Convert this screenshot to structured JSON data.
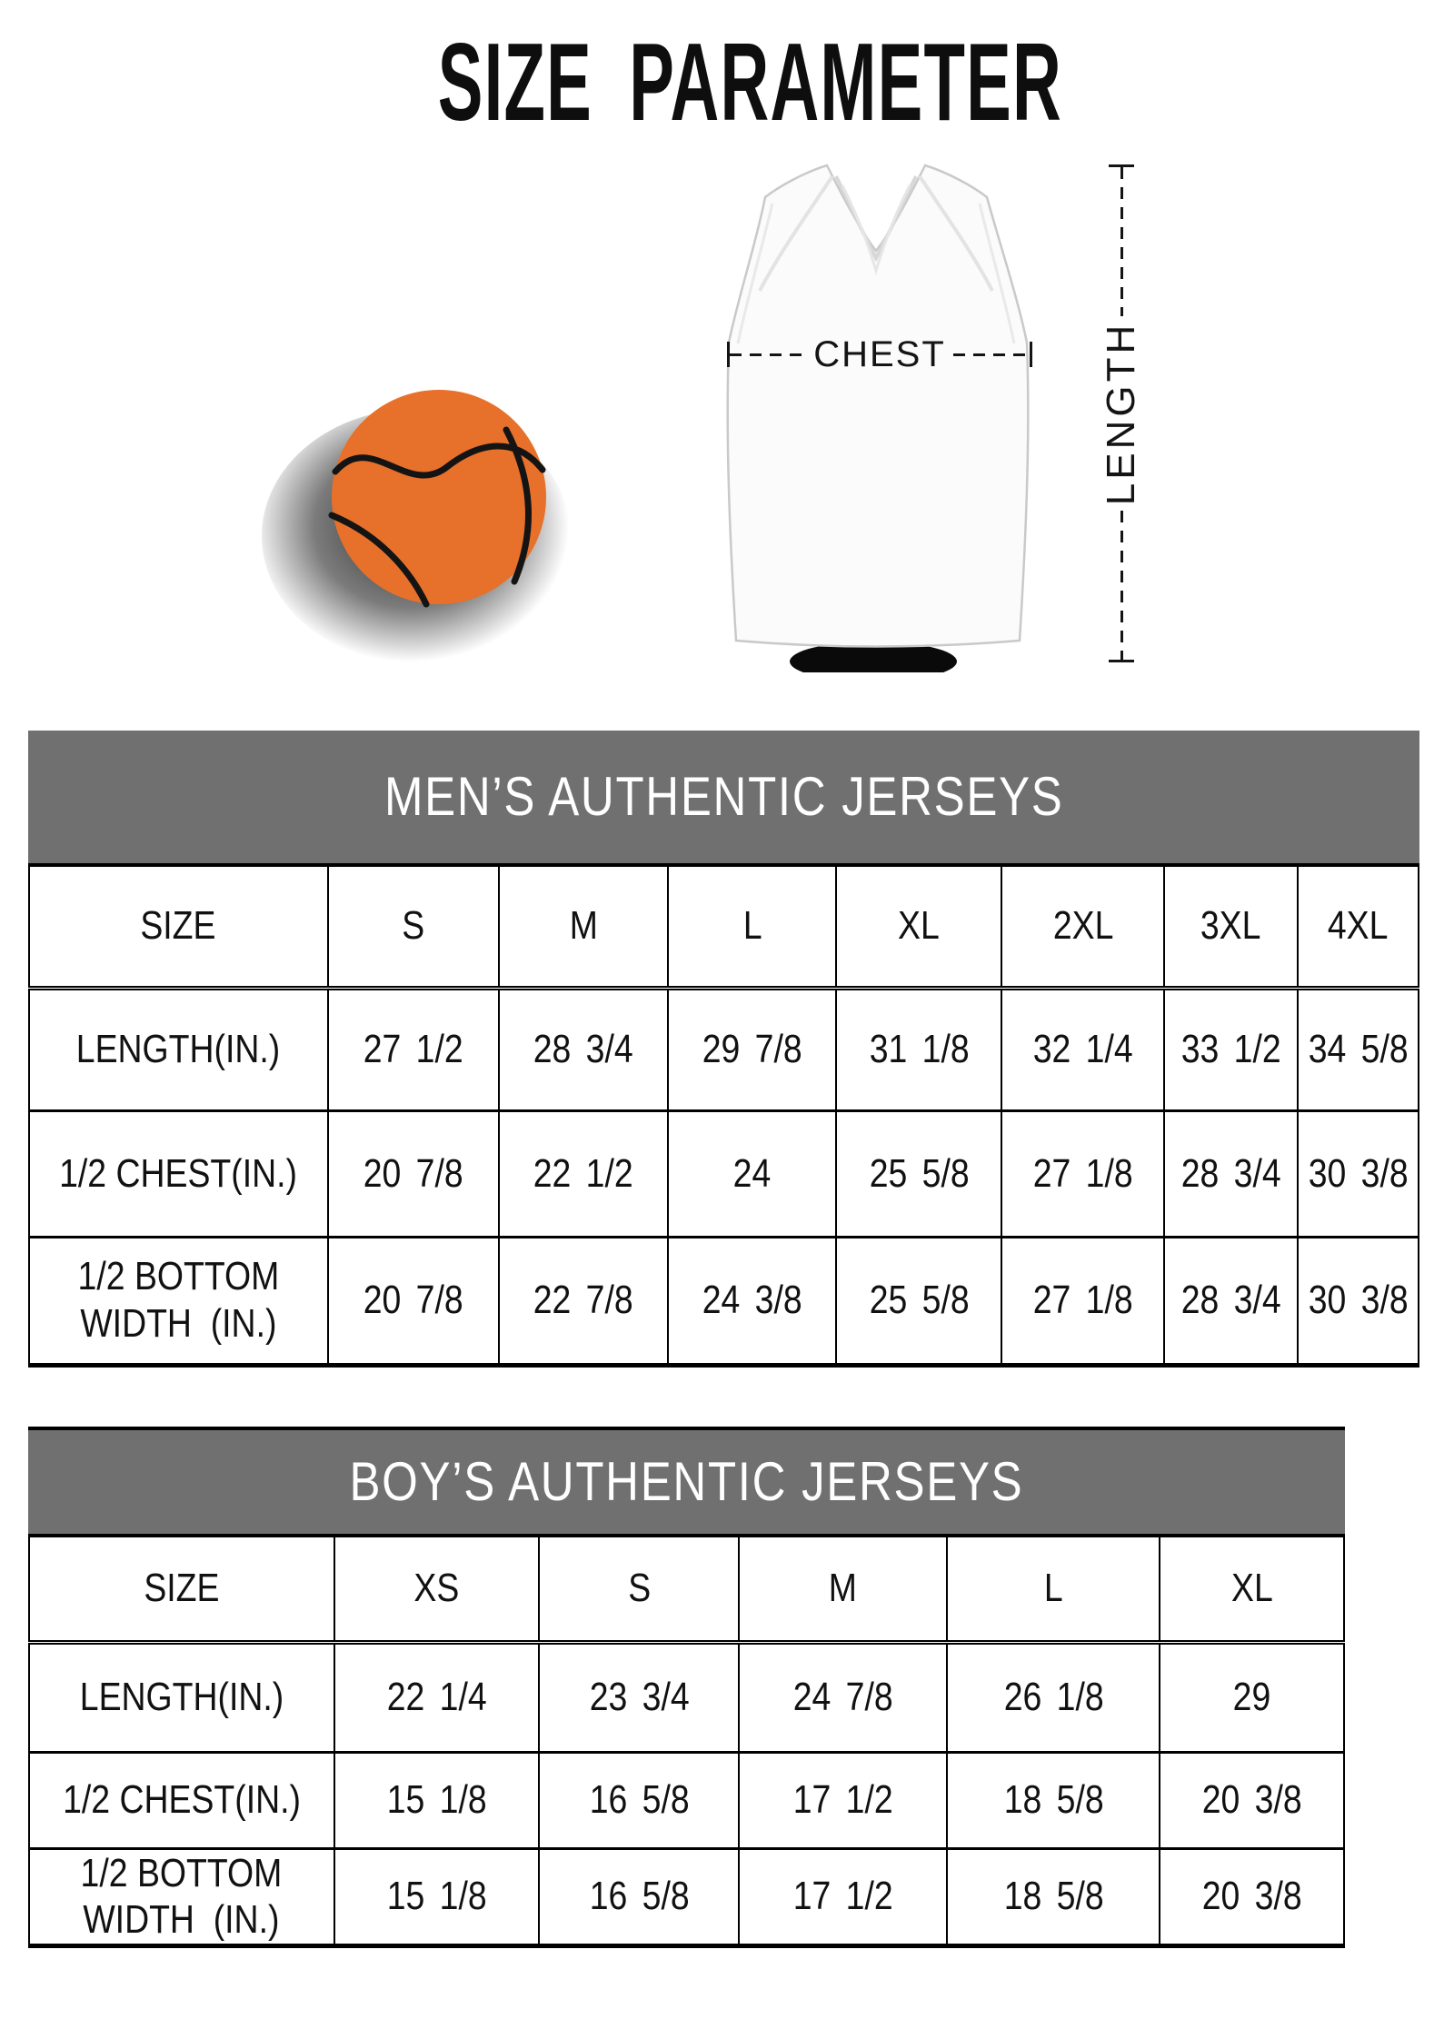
{
  "title": "SIZE PARAMETER",
  "diagram": {
    "chest_label": "CHEST",
    "length_label": "LENGTH",
    "basketball_color": "#e7712b",
    "basketball_seam_color": "#141414",
    "jersey_color": "#fbfbfb",
    "measure_line_color": "#141414"
  },
  "tables": [
    {
      "header": "MEN’S AUTHENTIC JERSEYS",
      "header_bg": "#717070",
      "col_widths_pct": [
        21.5,
        12.3,
        12.2,
        12.1,
        11.9,
        11.7,
        9.6,
        8.7
      ],
      "size_row": {
        "label": "SIZE",
        "sizes": [
          "S",
          "M",
          "L",
          "XL",
          "2XL",
          "3XL",
          "4XL"
        ]
      },
      "rows": [
        {
          "label": "LENGTH(IN.)",
          "values": [
            "27 1/2",
            "28 3/4",
            "29 7/8",
            "31 1/8",
            "32 1/4",
            "33 1/2",
            "34 5/8"
          ]
        },
        {
          "label": "1/2 CHEST(IN.)",
          "values": [
            "20 7/8",
            "22 1/2",
            "24",
            "25 5/8",
            "27 1/8",
            "28 3/4",
            "30 3/8"
          ]
        },
        {
          "label": "1/2 BOTTOM\nWIDTH  (IN.)",
          "values": [
            "20 7/8",
            "22 7/8",
            "24 3/8",
            "25 5/8",
            "27 1/8",
            "28 3/4",
            "30 3/8"
          ]
        }
      ]
    },
    {
      "header": "BOY’S AUTHENTIC JERSEYS",
      "header_bg": "#717070",
      "col_widths_pct": [
        23.2,
        15.6,
        15.2,
        15.8,
        16.2,
        14.0
      ],
      "size_row": {
        "label": "SIZE",
        "sizes": [
          "XS",
          "S",
          "M",
          "L",
          "XL"
        ]
      },
      "rows": [
        {
          "label": "LENGTH(IN.)",
          "values": [
            "22 1/4",
            "23 3/4",
            "24 7/8",
            "26 1/8",
            "29"
          ]
        },
        {
          "label": "1/2 CHEST(IN.)",
          "values": [
            "15 1/8",
            "16 5/8",
            "17 1/2",
            "18 5/8",
            "20 3/8"
          ]
        },
        {
          "label": "1/2 BOTTOM\nWIDTH  (IN.)",
          "values": [
            "15 1/8",
            "16 5/8",
            "17 1/2",
            "18 5/8",
            "20 3/8"
          ]
        }
      ]
    }
  ]
}
